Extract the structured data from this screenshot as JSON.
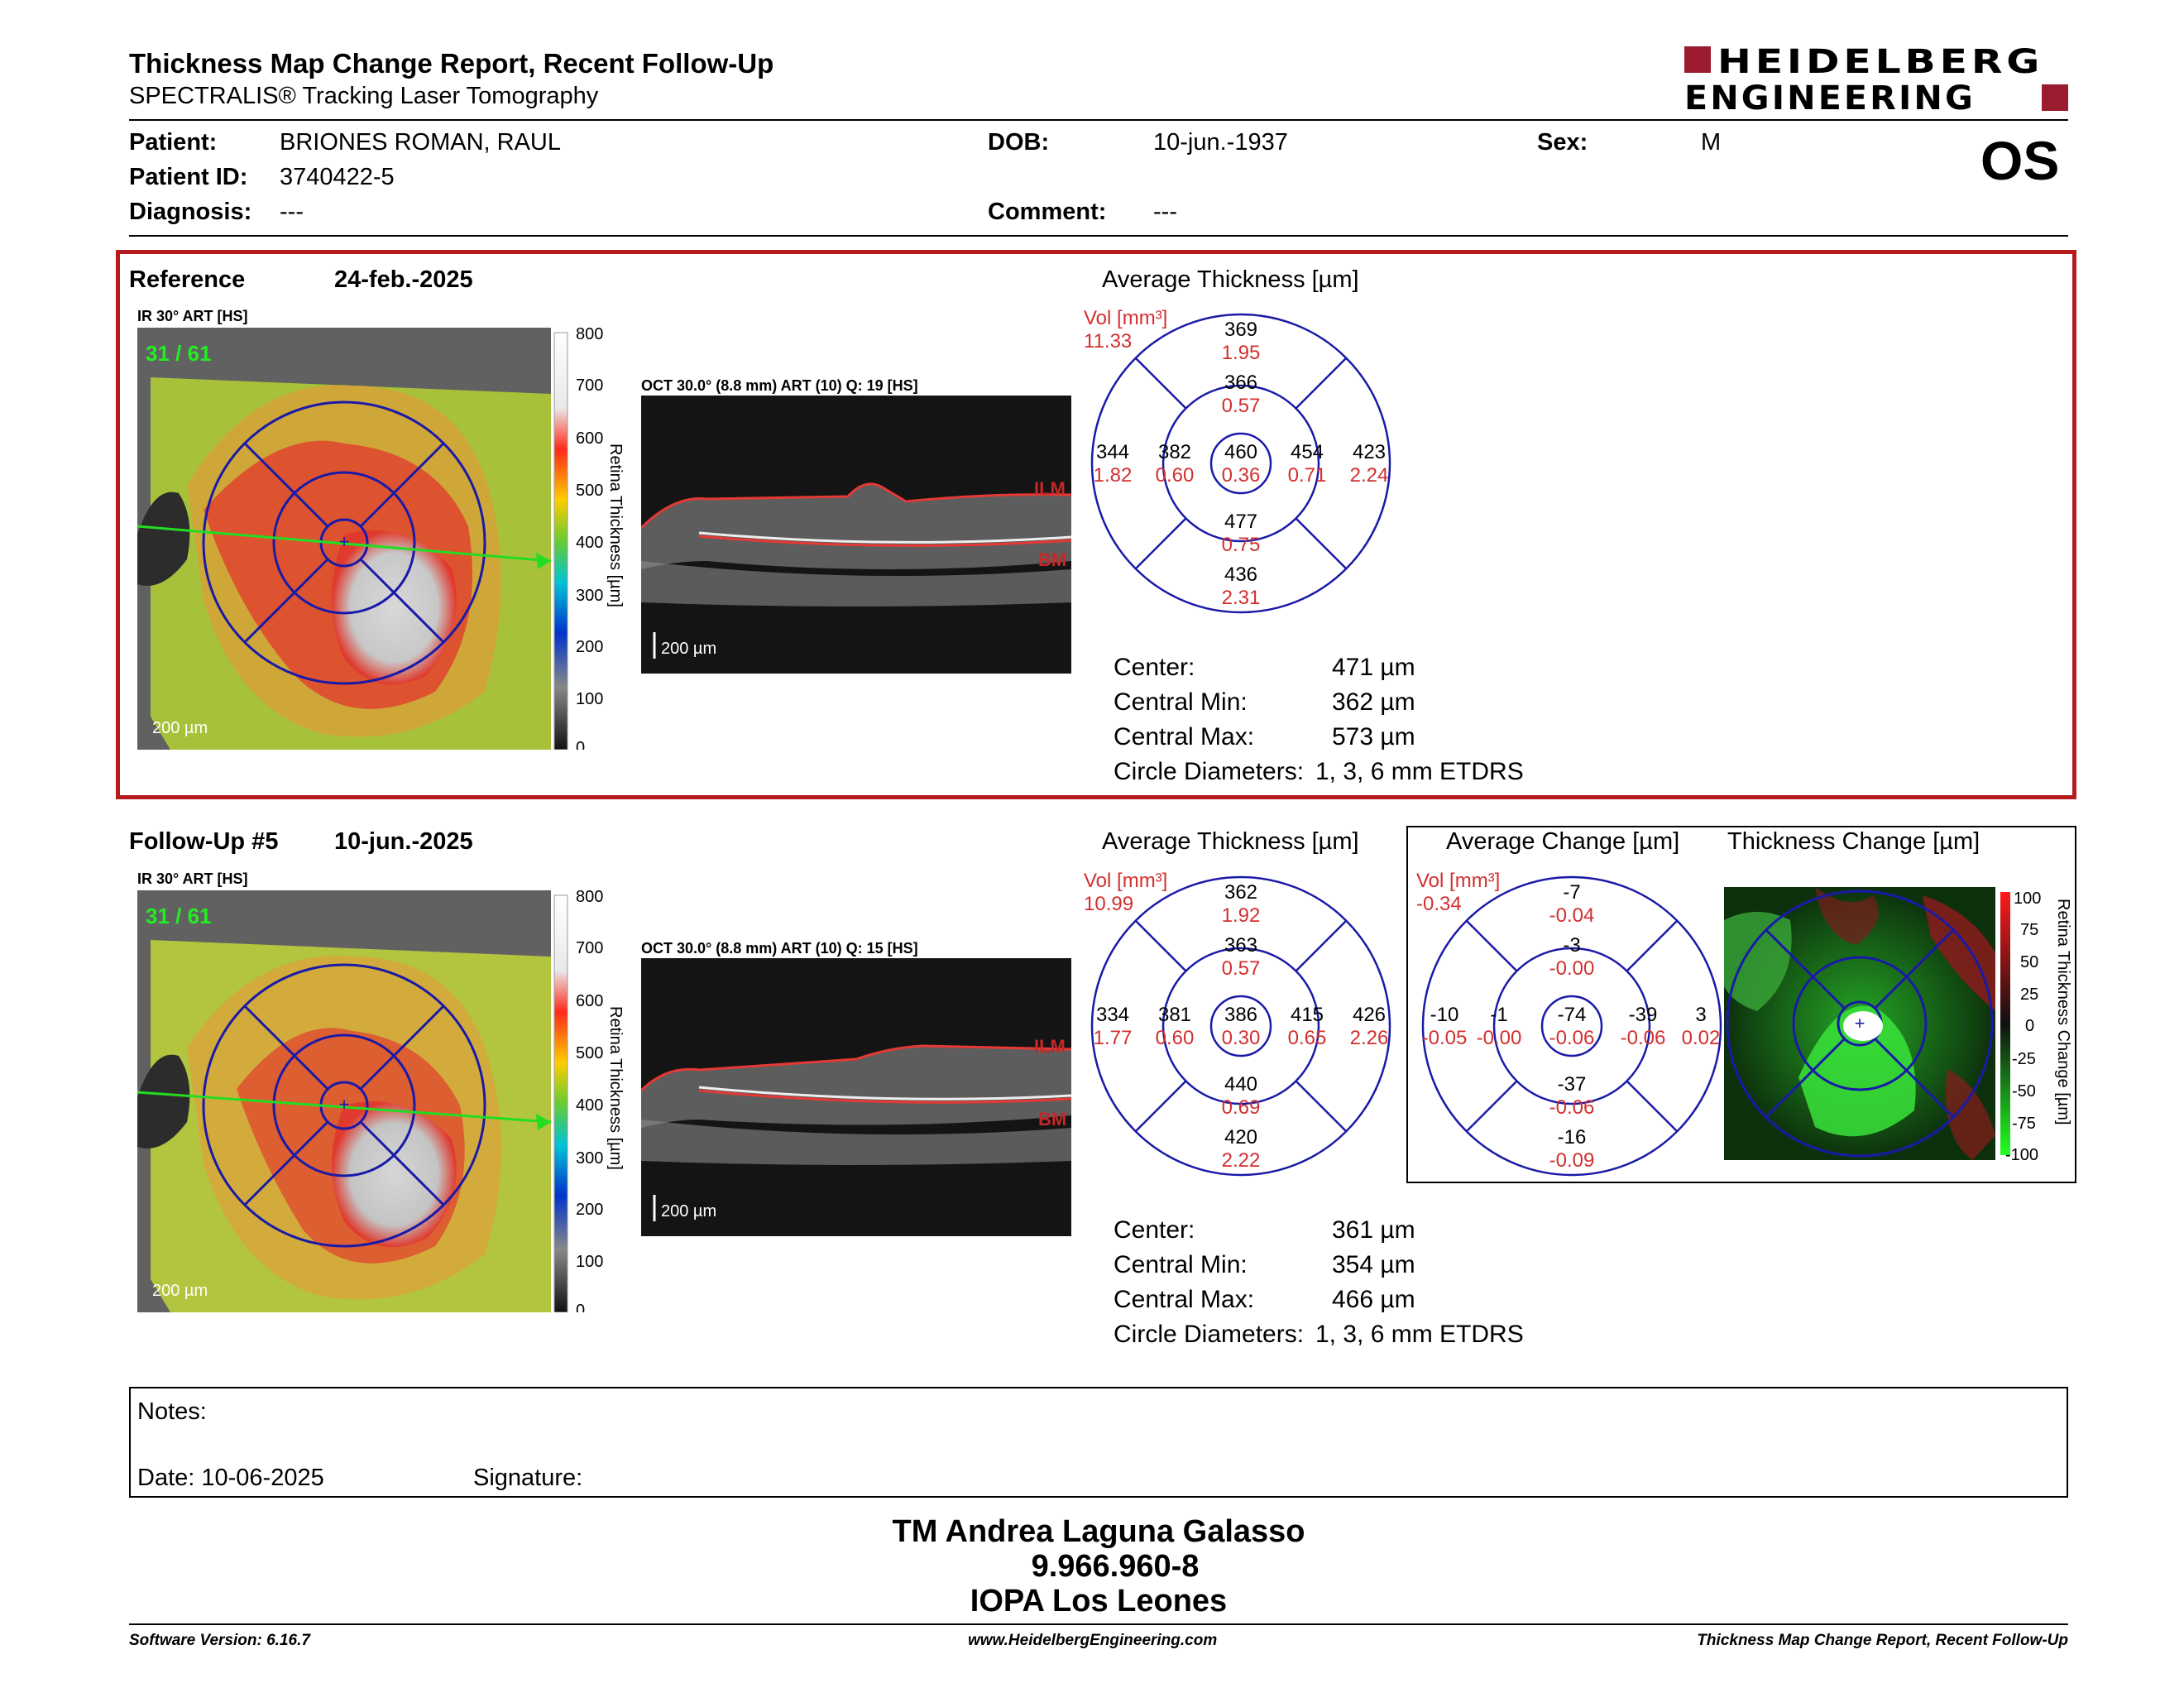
{
  "header": {
    "title": "Thickness Map Change Report, Recent Follow-Up",
    "subtitle": "SPECTRALIS® Tracking Laser Tomography",
    "logo_line1": "HEIDELBERG",
    "logo_line2": "ENGINEERING",
    "eye": "OS"
  },
  "patient": {
    "patient_label": "Patient:",
    "patient_value": "BRIONES ROMAN, RAUL",
    "id_label": "Patient ID:",
    "id_value": "3740422-5",
    "diagnosis_label": "Diagnosis:",
    "diagnosis_value": "---",
    "dob_label": "DOB:",
    "dob_value": "10-jun.-1937",
    "comment_label": "Comment:",
    "comment_value": "---",
    "sex_label": "Sex:",
    "sex_value": "M"
  },
  "common": {
    "ir_label": "IR 30° ART [HS]",
    "frame": "31 / 61",
    "scale": "200 µm",
    "colorbar_title": "Retina Thickness [µm]",
    "colorbar_ticks": [
      "800",
      "700",
      "600",
      "500",
      "400",
      "300",
      "200",
      "100",
      "0"
    ],
    "ilm": "ILM",
    "bm": "BM",
    "avg_title": "Average Thickness [µm]",
    "vol_label": "Vol [mm³]",
    "center_label": "Center:",
    "min_label": "Central Min:",
    "max_label": "Central Max:",
    "diam_label": "Circle Diameters:",
    "diam_value": "1, 3, 6 mm ETDRS"
  },
  "reference": {
    "label": "Reference",
    "date": "24-feb.-2025",
    "oct_label": "OCT 30.0° (8.8 mm) ART (10) Q: 19 [HS]",
    "vol_total": "11.33",
    "center": "471 µm",
    "central_min": "362 µm",
    "central_max": "573 µm",
    "grid": {
      "center": {
        "t": "460",
        "v": "0.36"
      },
      "inner_sup": {
        "t": "366",
        "v": "0.57"
      },
      "inner_inf": {
        "t": "477",
        "v": "0.75"
      },
      "inner_left": {
        "t": "382",
        "v": "0.60"
      },
      "inner_right": {
        "t": "454",
        "v": "0.71"
      },
      "outer_sup": {
        "t": "369",
        "v": "1.95"
      },
      "outer_inf": {
        "t": "436",
        "v": "2.31"
      },
      "outer_left": {
        "t": "344",
        "v": "1.82"
      },
      "outer_right": {
        "t": "423",
        "v": "2.24"
      }
    }
  },
  "followup": {
    "label": "Follow-Up #5",
    "date": "10-jun.-2025",
    "oct_label": "OCT 30.0° (8.8 mm) ART (10) Q: 15 [HS]",
    "vol_total": "10.99",
    "center": "361 µm",
    "central_min": "354 µm",
    "central_max": "466 µm",
    "grid": {
      "center": {
        "t": "386",
        "v": "0.30"
      },
      "inner_sup": {
        "t": "363",
        "v": "0.57"
      },
      "inner_inf": {
        "t": "440",
        "v": "0.69"
      },
      "inner_left": {
        "t": "381",
        "v": "0.60"
      },
      "inner_right": {
        "t": "415",
        "v": "0.65"
      },
      "outer_sup": {
        "t": "362",
        "v": "1.92"
      },
      "outer_inf": {
        "t": "420",
        "v": "2.22"
      },
      "outer_left": {
        "t": "334",
        "v": "1.77"
      },
      "outer_right": {
        "t": "426",
        "v": "2.26"
      }
    },
    "change": {
      "title": "Average Change [µm]",
      "vol_total": "-0.34",
      "grid": {
        "center": {
          "t": "-74",
          "v": "-0.06"
        },
        "inner_sup": {
          "t": "-3",
          "v": "-0.00"
        },
        "inner_inf": {
          "t": "-37",
          "v": "-0.06"
        },
        "inner_left": {
          "t": "-1",
          "v": "-0.00"
        },
        "inner_right": {
          "t": "-39",
          "v": "-0.06"
        },
        "outer_sup": {
          "t": "-7",
          "v": "-0.04"
        },
        "outer_inf": {
          "t": "-16",
          "v": "-0.09"
        },
        "outer_left": {
          "t": "-10",
          "v": "-0.05"
        },
        "outer_right": {
          "t": "3",
          "v": "0.02"
        }
      }
    },
    "thickness_change": {
      "title": "Thickness Change [µm]",
      "colorbar_title": "Retina Thickness Change [µm]",
      "ticks": [
        "100",
        "75",
        "50",
        "25",
        "0",
        "-25",
        "-50",
        "-75",
        "-100"
      ]
    }
  },
  "notes": {
    "notes_label": "Notes:",
    "date_label": "Date: 10-06-2025",
    "signature_label": "Signature:"
  },
  "signature_block": {
    "name": "TM Andrea Laguna Galasso",
    "id": "9.966.960-8",
    "org": "IOPA Los Leones"
  },
  "footer": {
    "version": "Software Version: 6.16.7",
    "website": "www.HeidelbergEngineering.com",
    "report": "Thickness Map Change Report, Recent Follow-Up"
  },
  "colors": {
    "frame_red": "#b71c1c",
    "logo_red": "#9b1b30",
    "grid_blue": "#1a1aa8",
    "value_red": "#d32f2f"
  }
}
